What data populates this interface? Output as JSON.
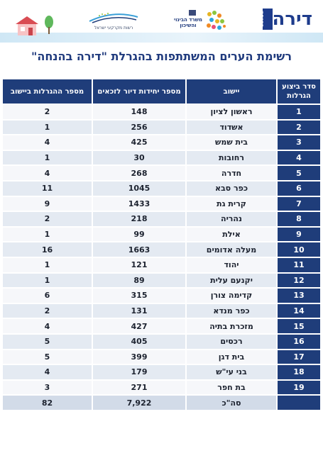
{
  "header": {
    "dira_logo_text": "דירה",
    "dira_badge_text": "בהנחה",
    "ministry_logo_text": "משרד הבינוי והשיכון",
    "rmi_logo_text": "רשות מקרקעי ישראל"
  },
  "title": "רשימת הערים המשתתפות בהגרלת \"דירה בהנחה\"",
  "table": {
    "headers": [
      "סדר ביצוע הגרלות",
      "יישוב",
      "מספר יחידות דיור לזכאים",
      "מספר ההגרלות ביישוב"
    ],
    "rows": [
      {
        "order": "1",
        "city": "ראשון לציון",
        "units": "148",
        "lotteries": "2"
      },
      {
        "order": "2",
        "city": "אשדוד",
        "units": "256",
        "lotteries": "1"
      },
      {
        "order": "3",
        "city": "בית שמש",
        "units": "425",
        "lotteries": "4"
      },
      {
        "order": "4",
        "city": "רחובות",
        "units": "30",
        "lotteries": "1"
      },
      {
        "order": "5",
        "city": "חדרה",
        "units": "268",
        "lotteries": "4"
      },
      {
        "order": "6",
        "city": "כפר סבא",
        "units": "1045",
        "lotteries": "11"
      },
      {
        "order": "7",
        "city": "קרית גת",
        "units": "1433",
        "lotteries": "9"
      },
      {
        "order": "8",
        "city": "נהריה",
        "units": "218",
        "lotteries": "2"
      },
      {
        "order": "9",
        "city": "אילת",
        "units": "99",
        "lotteries": "1"
      },
      {
        "order": "10",
        "city": "מעלה אדומים",
        "units": "1663",
        "lotteries": "16"
      },
      {
        "order": "11",
        "city": "יהוד",
        "units": "121",
        "lotteries": "1"
      },
      {
        "order": "12",
        "city": "יקנעם עלית",
        "units": "89",
        "lotteries": "1"
      },
      {
        "order": "13",
        "city": "קדימה צורן",
        "units": "315",
        "lotteries": "6"
      },
      {
        "order": "14",
        "city": "כפר מנדא",
        "units": "131",
        "lotteries": "2"
      },
      {
        "order": "15",
        "city": "מזכרת בתיה",
        "units": "427",
        "lotteries": "4"
      },
      {
        "order": "16",
        "city": "רכסים",
        "units": "405",
        "lotteries": "5"
      },
      {
        "order": "17",
        "city": "בית דגן",
        "units": "399",
        "lotteries": "5"
      },
      {
        "order": "18",
        "city": "בני עי\"ש",
        "units": "179",
        "lotteries": "4"
      },
      {
        "order": "19",
        "city": "בת חפר",
        "units": "271",
        "lotteries": "3"
      }
    ],
    "total": {
      "label": "סה\"כ",
      "units": "7,922",
      "lotteries": "82"
    }
  },
  "colors": {
    "header_blue": "#1f3d7a",
    "title_blue": "#1f3a7d",
    "row_light": "#f6f7fa",
    "row_alt": "#e4eaf2",
    "total_row": "#d2dbe8"
  }
}
